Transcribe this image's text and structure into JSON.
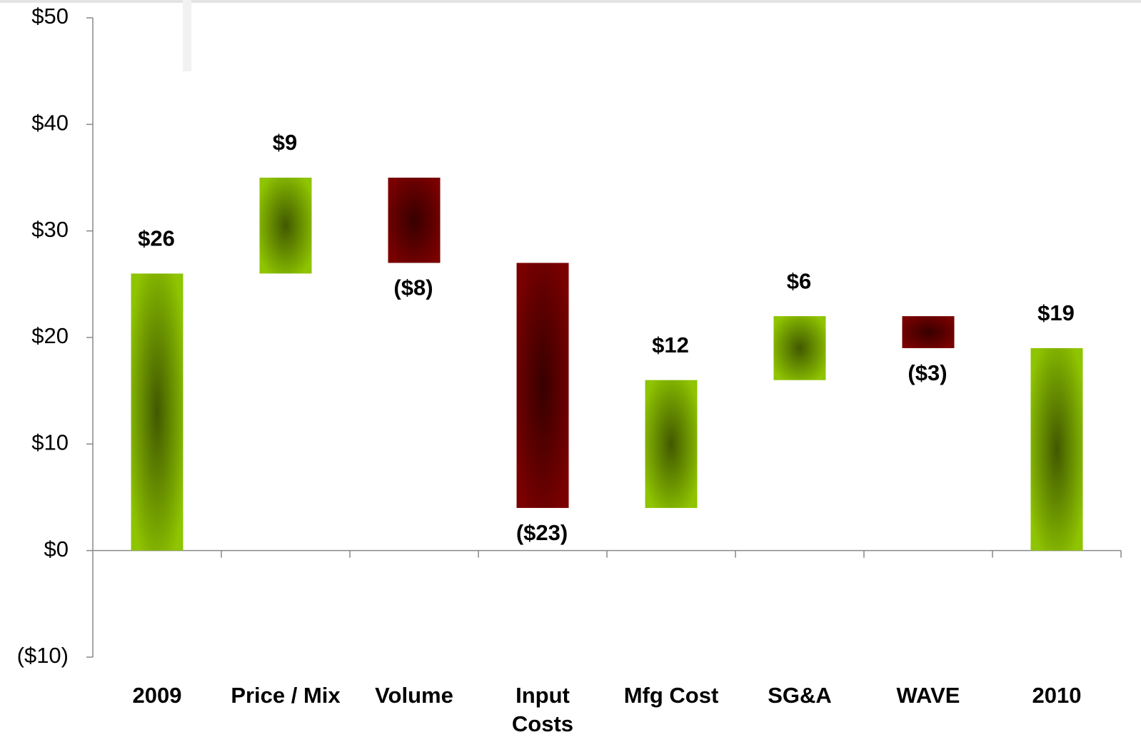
{
  "chart_data": {
    "type": "waterfall",
    "categories": [
      "2009",
      "Price / Mix",
      "Volume",
      "Input Costs",
      "Mfg Cost",
      "SG&A",
      "WAVE",
      "2010"
    ],
    "values": [
      26,
      9,
      -8,
      -23,
      12,
      6,
      -3,
      19
    ],
    "value_labels": [
      "$26",
      "$9",
      "($8)",
      "($23)",
      "$12",
      "$6",
      "($3)",
      "$19"
    ],
    "increase_color": "#8fc400",
    "decrease_color": "#7a0000",
    "ylim": [
      -10,
      50
    ],
    "yticks": [
      {
        "value": -10,
        "label": "($10)"
      },
      {
        "value": 0,
        "label": "$0"
      },
      {
        "value": 10,
        "label": "$10"
      },
      {
        "value": 20,
        "label": "$20"
      },
      {
        "value": 30,
        "label": "$30"
      },
      {
        "value": 40,
        "label": "$40"
      },
      {
        "value": 50,
        "label": "$50"
      }
    ]
  }
}
